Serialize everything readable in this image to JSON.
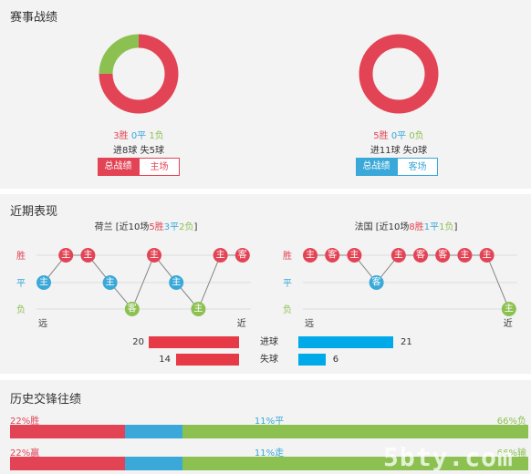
{
  "match_record": {
    "title": "赛事战绩",
    "home": {
      "win": "3胜",
      "draw": "0平",
      "loss": "1负",
      "goals": "进8球 失5球",
      "tab_active": "总战绩",
      "tab_other": "主场",
      "donut": {
        "win": 3,
        "draw": 0,
        "loss": 1
      }
    },
    "away": {
      "win": "5胜",
      "draw": "0平",
      "loss": "0负",
      "goals": "进11球 失0球",
      "tab_active": "总战绩",
      "tab_other": "客场",
      "donut": {
        "win": 5,
        "draw": 0,
        "loss": 0
      }
    }
  },
  "recent": {
    "title": "近期表现",
    "home": {
      "team": "荷兰",
      "summary_prefix": " [近10场",
      "w": "5胜",
      "d": "3平",
      "l": "2负",
      "summary_suffix": "]",
      "results": [
        {
          "r": "D",
          "label": "主"
        },
        {
          "r": "W",
          "label": "主"
        },
        {
          "r": "W",
          "label": "主"
        },
        {
          "r": "D",
          "label": "主"
        },
        {
          "r": "L",
          "label": "客"
        },
        {
          "r": "W",
          "label": "主"
        },
        {
          "r": "D",
          "label": "主"
        },
        {
          "r": "L",
          "label": "主"
        },
        {
          "r": "W",
          "label": "主"
        },
        {
          "r": "W",
          "label": "客"
        }
      ]
    },
    "away": {
      "team": "法国",
      "summary_prefix": " [近10场",
      "w": "8胜",
      "d": "1平",
      "l": "1负",
      "summary_suffix": "]",
      "results": [
        {
          "r": "W",
          "label": "主"
        },
        {
          "r": "W",
          "label": "客"
        },
        {
          "r": "W",
          "label": "主"
        },
        {
          "r": "D",
          "label": "客"
        },
        {
          "r": "W",
          "label": "主"
        },
        {
          "r": "W",
          "label": "客"
        },
        {
          "r": "W",
          "label": "客"
        },
        {
          "r": "W",
          "label": "主"
        },
        {
          "r": "W",
          "label": "主"
        },
        {
          "r": "L",
          "label": "主"
        }
      ]
    },
    "axis": {
      "win": "胜",
      "draw": "平",
      "loss": "负",
      "far": "远",
      "near": "近"
    },
    "goals_for": {
      "label": "进球",
      "home": 20,
      "away": 21
    },
    "goals_against": {
      "label": "失球",
      "home": 14,
      "away": 6
    }
  },
  "history": {
    "title": "历史交锋往绩",
    "row1": {
      "left": "22%胜",
      "mid": "11%平",
      "right": "66%负",
      "p": [
        22,
        11,
        66
      ]
    },
    "row2": {
      "left": "22%赢",
      "mid": "11%走",
      "right": "66%输",
      "p": [
        22,
        11,
        66
      ]
    }
  },
  "watermark": "5bty.com",
  "colors": {
    "win": "#e34455",
    "draw": "#3aa8d8",
    "loss": "#8cc152",
    "accent": "#00a9e8"
  }
}
